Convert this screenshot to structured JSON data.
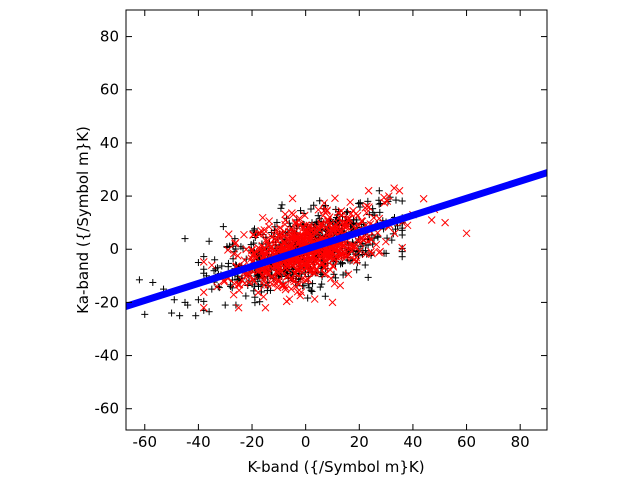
{
  "chart_data": {
    "type": "scatter",
    "xlabel": "K-band ({/Symbol m}K)",
    "ylabel": "Ka-band ({/Symbol m}K)",
    "xlim": [
      -67,
      90
    ],
    "ylim": [
      -68,
      90
    ],
    "xticks": [
      -60,
      -40,
      -20,
      0,
      20,
      40,
      60,
      80
    ],
    "yticks": [
      -60,
      -40,
      -20,
      0,
      20,
      40,
      60,
      80
    ],
    "grid": false,
    "legend": "none",
    "fit_line": {
      "x": [
        -67,
        90
      ],
      "y": [
        -21.5,
        28.8
      ],
      "color": "#0000ff"
    },
    "series": [
      {
        "marker": "plus",
        "color": "#000000",
        "cluster": {
          "n": 650,
          "x_mean": 0,
          "x_sd": 16,
          "slope": 0.3,
          "y_sd": 6.5
        },
        "points": [
          {
            "x": -62,
            "y": -11.5
          },
          {
            "x": -60,
            "y": -24.5
          },
          {
            "x": -57,
            "y": -12.5
          },
          {
            "x": -53,
            "y": -15
          },
          {
            "x": -50,
            "y": -24
          },
          {
            "x": -49,
            "y": -19
          },
          {
            "x": -47,
            "y": -25
          },
          {
            "x": -45,
            "y": -20
          },
          {
            "x": -44,
            "y": -21
          },
          {
            "x": -45,
            "y": 4
          },
          {
            "x": -40,
            "y": -19
          },
          {
            "x": -41,
            "y": -25
          },
          {
            "x": -38,
            "y": -23
          },
          {
            "x": -36,
            "y": -23.5
          },
          {
            "x": -35,
            "y": -15
          },
          {
            "x": -37,
            "y": -10
          },
          {
            "x": -40,
            "y": -5
          },
          {
            "x": -36,
            "y": 3
          },
          {
            "x": -30,
            "y": -21
          },
          {
            "x": -28,
            "y": -14
          },
          {
            "x": -26,
            "y": -21
          }
        ]
      },
      {
        "marker": "cross",
        "color": "#ff0000",
        "cluster": {
          "n": 650,
          "x_mean": 0,
          "x_sd": 14,
          "slope": 0.3,
          "y_sd": 6
        },
        "points": [
          {
            "x": 60,
            "y": 6
          },
          {
            "x": 52,
            "y": 10
          },
          {
            "x": 47,
            "y": 11
          },
          {
            "x": 44,
            "y": 19
          },
          {
            "x": 48,
            "y": 15
          },
          {
            "x": 40,
            "y": 13
          },
          {
            "x": 38,
            "y": 9
          },
          {
            "x": 33,
            "y": 23
          },
          {
            "x": 35,
            "y": 22
          },
          {
            "x": 31,
            "y": 20
          },
          {
            "x": 10,
            "y": -20
          },
          {
            "x": -3,
            "y": -16
          },
          {
            "x": -25,
            "y": -22
          },
          {
            "x": -15,
            "y": -22
          },
          {
            "x": -29,
            "y": -11
          },
          {
            "x": -35,
            "y": -6
          }
        ]
      }
    ]
  }
}
